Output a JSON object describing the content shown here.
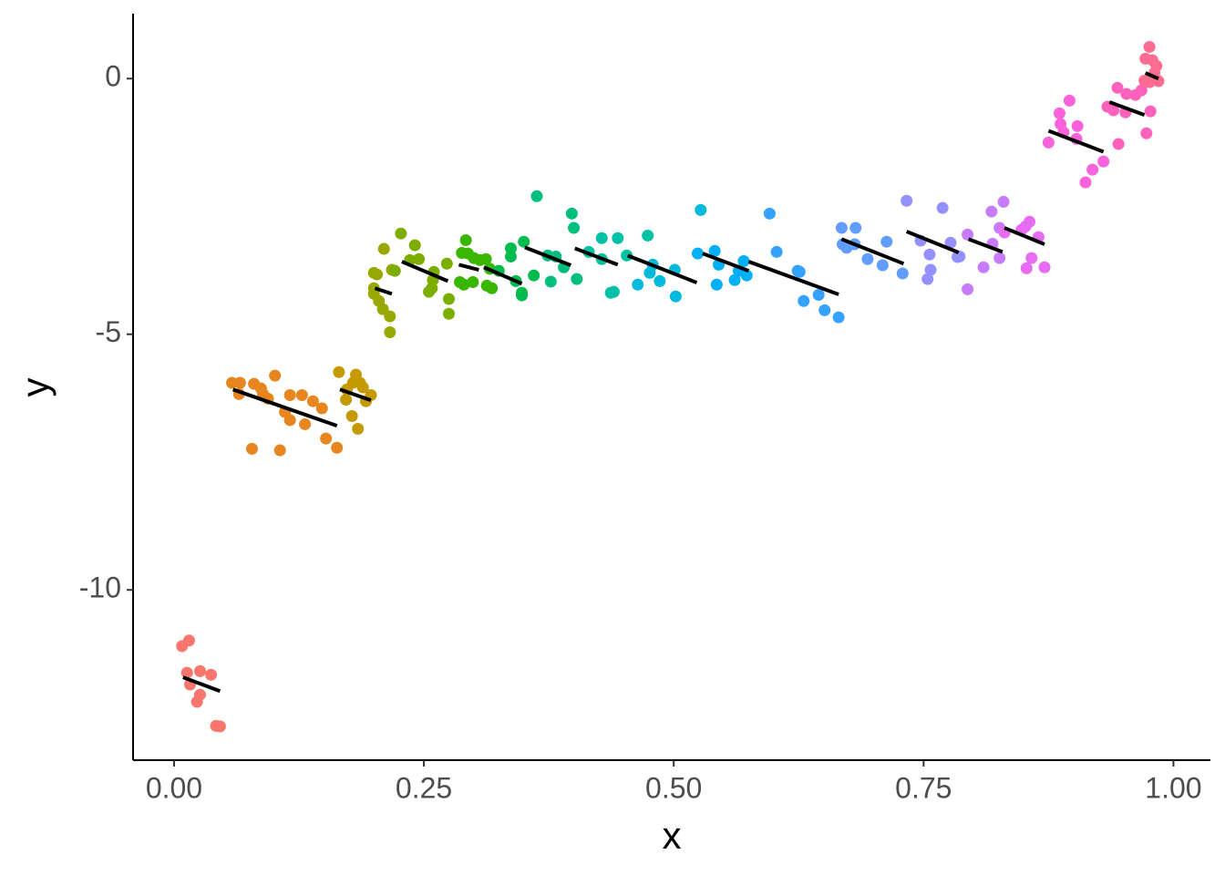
{
  "chart_data": {
    "type": "scatter",
    "xlabel": "x",
    "ylabel": "y",
    "xlim": [
      -0.041,
      1.037
    ],
    "ylim": [
      -13.33,
      1.27
    ],
    "xticks": [
      {
        "value": 0,
        "label": "0.00"
      },
      {
        "value": 0.25,
        "label": "0.25"
      },
      {
        "value": 0.5,
        "label": "0.50"
      },
      {
        "value": 0.75,
        "label": "0.75"
      },
      {
        "value": 1,
        "label": "1.00"
      }
    ],
    "yticks": [
      -10,
      -5,
      0
    ],
    "fit_color": "#000000",
    "series": [
      {
        "color": "#F8766D",
        "x": [
          0.008,
          0.015,
          0.013,
          0.026,
          0.016,
          0.037,
          0.026,
          0.023,
          0.042,
          0.046
        ],
        "values": [
          -11.1,
          -10.99,
          -11.62,
          -11.59,
          -11.85,
          -11.66,
          -12.05,
          -12.19,
          -12.66,
          -12.67
        ],
        "fit_x": [
          0.009,
          0.046
        ],
        "fit_y": [
          -11.71,
          -11.98
        ]
      },
      {
        "color": "#E7851E",
        "x": [
          0.058,
          0.066,
          0.065,
          0.08,
          0.087,
          0.089,
          0.094,
          0.101,
          0.078,
          0.106,
          0.111,
          0.116,
          0.116,
          0.128,
          0.131,
          0.139,
          0.148,
          0.152,
          0.163
        ],
        "values": [
          -5.95,
          -5.95,
          -6.17,
          -5.97,
          -6.06,
          -6.17,
          -6.26,
          -5.81,
          -7.24,
          -7.27,
          -6.52,
          -6.19,
          -6.68,
          -6.19,
          -6.76,
          -6.31,
          -6.45,
          -7.04,
          -7.22
        ],
        "fit_x": [
          0.059,
          0.163
        ],
        "fit_y": [
          -6.08,
          -6.79
        ]
      },
      {
        "color": "#C49A00",
        "x": [
          0.165,
          0.182,
          0.179,
          0.186,
          0.173,
          0.172,
          0.189,
          0.197,
          0.192,
          0.178,
          0.184
        ],
        "values": [
          -5.74,
          -5.79,
          -5.95,
          -5.95,
          -6.08,
          -6.28,
          -6.04,
          -6.19,
          -6.31,
          -6.6,
          -6.85
        ],
        "fit_x": [
          0.166,
          0.197
        ],
        "fit_y": [
          -6.08,
          -6.29
        ]
      },
      {
        "color": "#99A800",
        "x": [
          0.2,
          0.203,
          0.2,
          0.2,
          0.205,
          0.209,
          0.216,
          0.216,
          0.21,
          0.218
        ],
        "values": [
          -3.8,
          -3.83,
          -4.1,
          -4.21,
          -4.35,
          -4.51,
          -4.65,
          -4.96,
          -3.33,
          -3.74
        ],
        "fit_x": [
          0.201,
          0.218
        ],
        "fit_y": [
          -4.1,
          -4.21
        ]
      },
      {
        "color": "#7CAE00",
        "x": [
          0.227,
          0.241,
          0.245,
          0.236,
          0.221,
          0.26,
          0.259,
          0.258,
          0.255,
          0.273,
          0.275,
          0.275
        ],
        "values": [
          -3.03,
          -3.26,
          -3.53,
          -3.55,
          -3.76,
          -3.78,
          -3.94,
          -4.1,
          -4.17,
          -3.62,
          -4.31,
          -4.6
        ],
        "fit_x": [
          0.228,
          0.274
        ],
        "fit_y": [
          -3.58,
          -3.96
        ]
      },
      {
        "color": "#39B600",
        "x": [
          0.292,
          0.288,
          0.294,
          0.3,
          0.306,
          0.312,
          0.286,
          0.29,
          0.299,
          0.313,
          0.318,
          0.316
        ],
        "values": [
          -3.16,
          -3.41,
          -3.42,
          -3.51,
          -3.55,
          -3.53,
          -3.98,
          -4.03,
          -3.98,
          -4.05,
          -4.1,
          -3.72
        ],
        "fit_x": [
          0.285,
          0.305
        ],
        "fit_y": [
          -3.64,
          -3.74
        ]
      },
      {
        "color": "#00BB4E",
        "x": [
          0.337,
          0.337,
          0.325,
          0.342,
          0.348,
          0.348,
          0.35,
          0.36
        ],
        "values": [
          -3.32,
          -3.48,
          -3.76,
          -3.96,
          -4.19,
          -4.24,
          -3.19,
          -3.85
        ],
        "fit_x": [
          0.31,
          0.348
        ],
        "fit_y": [
          -3.69,
          -4.01
        ]
      },
      {
        "color": "#00BF7D",
        "x": [
          0.363,
          0.374,
          0.382,
          0.377,
          0.39,
          0.403,
          0.398,
          0.4
        ],
        "values": [
          -2.3,
          -3.46,
          -3.48,
          -3.97,
          -3.69,
          -3.92,
          -2.64,
          -2.92
        ],
        "fit_x": [
          0.351,
          0.397
        ],
        "fit_y": [
          -3.3,
          -3.65
        ]
      },
      {
        "color": "#00C1A3",
        "x": [
          0.415,
          0.428,
          0.437,
          0.44,
          0.444,
          0.428,
          0.453,
          0.474
        ],
        "values": [
          -3.39,
          -3.12,
          -4.19,
          -4.17,
          -3.12,
          -3.53,
          -3.46,
          -3.07
        ],
        "fit_x": [
          0.401,
          0.444
        ],
        "fit_y": [
          -3.32,
          -3.64
        ]
      },
      {
        "color": "#00BADE",
        "x": [
          0.464,
          0.476,
          0.479,
          0.486,
          0.501,
          0.502,
          0.527
        ],
        "values": [
          -4.03,
          -3.8,
          -3.64,
          -3.96,
          -3.74,
          -4.26,
          -2.57
        ],
        "fit_x": [
          0.454,
          0.523
        ],
        "fit_y": [
          -3.46,
          -3.99
        ]
      },
      {
        "color": "#00B0F6",
        "x": [
          0.524,
          0.541,
          0.545,
          0.543,
          0.561,
          0.565,
          0.57,
          0.573
        ],
        "values": [
          -3.42,
          -3.37,
          -3.64,
          -4.03,
          -3.94,
          -3.76,
          -3.57,
          -3.85
        ],
        "fit_x": [
          0.529,
          0.575
        ],
        "fit_y": [
          -3.42,
          -3.76
        ]
      },
      {
        "color": "#35A2FF",
        "x": [
          0.596,
          0.603,
          0.626,
          0.63,
          0.645,
          0.651,
          0.665,
          0.624
        ],
        "values": [
          -2.64,
          -3.39,
          -3.78,
          -4.35,
          -4.23,
          -4.53,
          -4.67,
          -3.76
        ],
        "fit_x": [
          0.575,
          0.665
        ],
        "fit_y": [
          -3.58,
          -4.22
        ]
      },
      {
        "color": "#619CFF",
        "x": [
          0.668,
          0.682,
          0.669,
          0.673,
          0.681,
          0.694,
          0.709,
          0.713,
          0.729
        ],
        "values": [
          -2.92,
          -2.92,
          -3.24,
          -3.31,
          -3.24,
          -3.53,
          -3.65,
          -3.19,
          -3.81
        ],
        "fit_x": [
          0.668,
          0.73
        ],
        "fit_y": [
          -3.14,
          -3.62
        ]
      },
      {
        "color": "#9590FF",
        "x": [
          0.733,
          0.747,
          0.756,
          0.757,
          0.754,
          0.769,
          0.777,
          0.784,
          0.786
        ],
        "values": [
          -2.39,
          -3.17,
          -3.44,
          -3.74,
          -3.92,
          -2.53,
          -3.21,
          -3.49,
          -3.48
        ],
        "fit_x": [
          0.733,
          0.785
        ],
        "fit_y": [
          -2.99,
          -3.4
        ]
      },
      {
        "color": "#C77CFF",
        "x": [
          0.794,
          0.794,
          0.81,
          0.818,
          0.819,
          0.826,
          0.83,
          0.826
        ],
        "values": [
          -3.05,
          -4.12,
          -3.69,
          -2.6,
          -3.23,
          -3.51,
          -2.41,
          -2.92
        ],
        "fit_x": [
          0.795,
          0.829
        ],
        "fit_y": [
          -3.14,
          -3.39
        ]
      },
      {
        "color": "#E76BF3",
        "x": [
          0.831,
          0.848,
          0.856,
          0.852,
          0.865,
          0.858,
          0.853,
          0.871
        ],
        "values": [
          -3.01,
          -2.96,
          -2.8,
          -2.89,
          -3.1,
          -3.51,
          -3.71,
          -3.69
        ],
        "fit_x": [
          0.831,
          0.871
        ],
        "fit_y": [
          -2.92,
          -3.24
        ]
      },
      {
        "color": "#FA62DB",
        "x": [
          0.875,
          0.886,
          0.887,
          0.896,
          0.89,
          0.904,
          0.903,
          0.919,
          0.912,
          0.93
        ],
        "values": [
          -1.25,
          -0.68,
          -0.89,
          -0.43,
          -1.05,
          -0.93,
          -1.18,
          -1.78,
          -2.03,
          -1.62
        ],
        "fit_x": [
          0.875,
          0.93
        ],
        "fit_y": [
          -1.02,
          -1.43
        ]
      },
      {
        "color": "#FF62BC",
        "x": [
          0.934,
          0.94,
          0.944,
          0.953,
          0.962,
          0.968,
          0.945,
          0.973,
          0.977,
          0.952
        ],
        "values": [
          -0.55,
          -0.62,
          -0.18,
          -0.3,
          -0.32,
          -0.23,
          -1.28,
          -1.07,
          -0.64,
          -0.66
        ],
        "fit_x": [
          0.936,
          0.971
        ],
        "fit_y": [
          -0.46,
          -0.71
        ]
      },
      {
        "color": "#FF6C91",
        "x": [
          0.976,
          0.972,
          0.979,
          0.983,
          0.971,
          0.976,
          0.985,
          0.981
        ],
        "values": [
          0.62,
          0.39,
          0.36,
          0.25,
          -0.04,
          -0.07,
          -0.05,
          0.11
        ],
        "fit_x": [
          0.972,
          0.985
        ],
        "fit_y": [
          0.11,
          0
        ]
      }
    ]
  }
}
